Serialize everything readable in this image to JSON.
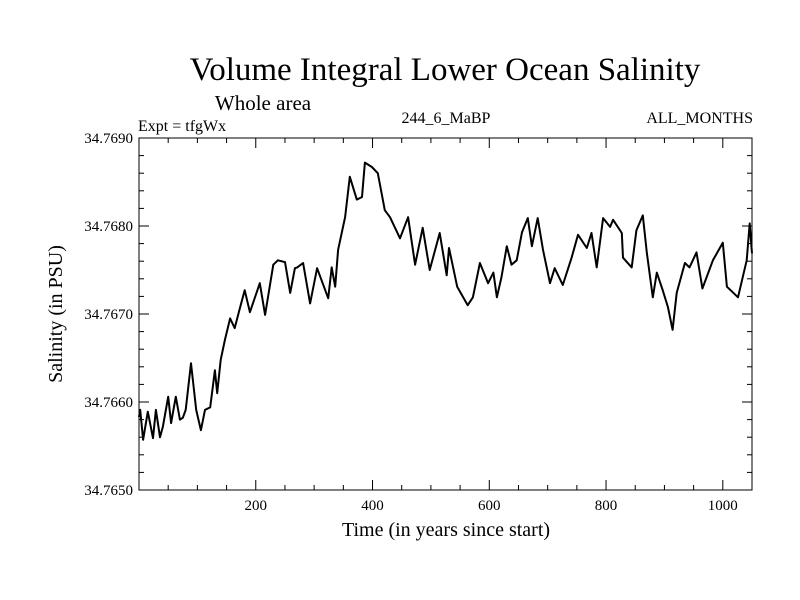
{
  "chart_data": {
    "type": "line",
    "title": "Volume Integral Lower Ocean Salinity",
    "subtitle": "Whole area",
    "annotations": {
      "left": "Expt = tfgWx",
      "center": "244_6_MaBP",
      "right": "ALL_MONTHS"
    },
    "xlabel": "Time (in years since start)",
    "ylabel": "Salinity (in PSU)",
    "xlim": [
      0,
      1050
    ],
    "ylim": [
      34.765,
      34.769
    ],
    "x_major_ticks": [
      200,
      400,
      600,
      800,
      1000
    ],
    "x_tick_labels": [
      "200",
      "400",
      "600",
      "800",
      "1000"
    ],
    "x_minor_step": 50,
    "y_major_ticks": [
      34.765,
      34.766,
      34.767,
      34.768,
      34.769
    ],
    "y_tick_labels": [
      "34.7650",
      "34.7660",
      "34.7670",
      "34.7680",
      "34.7690"
    ],
    "y_minor_step": 0.0002,
    "grid": false,
    "series": [
      {
        "name": "Salinity",
        "color": "#000000",
        "x": [
          0,
          2,
          7,
          15,
          24,
          29,
          36,
          41,
          50,
          55,
          63,
          70,
          75,
          80,
          89,
          98,
          106,
          113,
          122,
          130,
          134,
          140,
          147,
          156,
          164,
          173,
          181,
          190,
          207,
          216,
          230,
          238,
          250,
          259,
          267,
          271,
          281,
          293,
          305,
          324,
          330,
          336,
          341,
          353,
          361,
          373,
          382,
          387,
          399,
          409,
          421,
          430,
          447,
          461,
          473,
          486,
          498,
          515,
          527,
          531,
          545,
          563,
          572,
          584,
          598,
          607,
          613,
          621,
          630,
          638,
          647,
          656,
          666,
          673,
          683,
          692,
          704,
          712,
          726,
          741,
          752,
          767,
          775,
          784,
          795,
          807,
          812,
          827,
          829,
          844,
          852,
          863,
          870,
          880,
          887,
          897,
          906,
          914,
          921,
          935,
          943,
          955,
          965,
          983,
          1000,
          1007,
          1026,
          1041,
          1046,
          1050
        ],
        "y": [
          34.76583,
          34.76591,
          34.76557,
          34.76589,
          34.76559,
          34.76591,
          34.7656,
          34.76572,
          34.76606,
          34.76576,
          34.76606,
          34.7658,
          34.76582,
          34.76591,
          34.76644,
          34.76591,
          34.76568,
          34.76591,
          34.76594,
          34.76636,
          34.7661,
          34.76648,
          34.7667,
          34.76695,
          34.76684,
          34.76707,
          34.76727,
          34.76702,
          34.76735,
          34.76699,
          34.76756,
          34.76761,
          34.76759,
          34.76724,
          34.76752,
          34.76753,
          34.76758,
          34.76712,
          34.76752,
          34.76718,
          34.76753,
          34.76731,
          34.76773,
          34.7681,
          34.76856,
          34.7683,
          34.76833,
          34.76872,
          34.76867,
          34.7686,
          34.76818,
          34.7681,
          34.76786,
          34.7681,
          34.76756,
          34.76798,
          34.7675,
          34.76792,
          34.76744,
          34.76775,
          34.76731,
          34.7671,
          34.76719,
          34.76758,
          34.76735,
          34.76747,
          34.76719,
          34.76742,
          34.76777,
          34.76756,
          34.76761,
          34.76793,
          34.76809,
          34.76777,
          34.76809,
          34.76773,
          34.76735,
          34.76752,
          34.76733,
          34.76764,
          34.7679,
          34.76775,
          34.76792,
          34.76753,
          34.76809,
          34.76799,
          34.76807,
          34.76792,
          34.76764,
          34.76753,
          34.76795,
          34.76812,
          34.76769,
          34.76719,
          34.76747,
          34.76727,
          34.76708,
          34.76682,
          34.76724,
          34.76758,
          34.76753,
          34.7677,
          34.76729,
          34.76761,
          34.76781,
          34.76731,
          34.76719,
          34.76761,
          34.76803,
          34.76769
        ]
      }
    ]
  }
}
